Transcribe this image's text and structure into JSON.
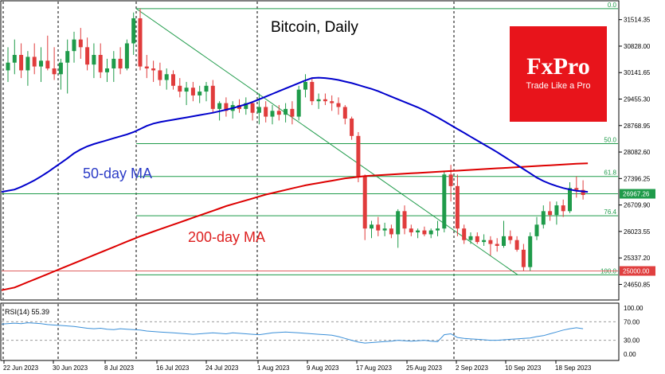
{
  "chart_data": {
    "type": "candlestick",
    "title": "Bitcoin, Daily",
    "symbol": "Bitcoin",
    "timeframe": "Daily",
    "price_axis_labels": [
      31514.35,
      30828.0,
      30141.65,
      29455.3,
      28768.95,
      28082.6,
      27396.25,
      26709.9,
      26023.55,
      25337.2,
      24650.85
    ],
    "ylim": [
      24350,
      31900
    ],
    "date_labels": [
      "22 Jun 2023",
      "30 Jun 2023",
      "8 Jul 2023",
      "16 Jul 2023",
      "24 Jul 2023",
      "1 Aug 2023",
      "9 Aug 2023",
      "17 Aug 2023",
      "25 Aug 2023",
      "2 Sep 2023",
      "10 Sep 2023",
      "18 Sep 2023"
    ],
    "current_price_label": "26967.26",
    "horizontal_level_label": "25000.00",
    "horizontal_level": 25000,
    "fib_levels": [
      {
        "label": "0.0",
        "price": 31800
      },
      {
        "label": "50.0",
        "price": 28300
      },
      {
        "label": "61.8",
        "price": 27450
      },
      {
        "label": "76.4",
        "price": 26430
      },
      {
        "label": "100.0",
        "price": 24900
      }
    ],
    "ma50_label": "50-day MA",
    "ma200_label": "200-day MA",
    "ohlc": [
      [
        30200,
        30800,
        29900,
        30400
      ],
      [
        30400,
        31000,
        30100,
        30600
      ],
      [
        30600,
        30900,
        30000,
        30200
      ],
      [
        30200,
        30700,
        29800,
        30550
      ],
      [
        30550,
        30900,
        30100,
        30300
      ],
      [
        30300,
        30800,
        29900,
        30450
      ],
      [
        30450,
        31100,
        30200,
        30250
      ],
      [
        30250,
        30800,
        29950,
        30100
      ],
      [
        30100,
        30500,
        29700,
        30400
      ],
      [
        30400,
        31000,
        29600,
        30700
      ],
      [
        30700,
        31200,
        30400,
        31000
      ],
      [
        31000,
        31300,
        30500,
        30800
      ],
      [
        30800,
        31050,
        30200,
        30350
      ],
      [
        30350,
        30900,
        30000,
        30600
      ],
      [
        30600,
        30900,
        30000,
        30150
      ],
      [
        30150,
        30500,
        29900,
        30250
      ],
      [
        30250,
        30700,
        29900,
        30500
      ],
      [
        30500,
        30800,
        30100,
        30250
      ],
      [
        30250,
        31000,
        30200,
        30900
      ],
      [
        30900,
        31700,
        30600,
        31550
      ],
      [
        31550,
        31800,
        30200,
        30300
      ],
      [
        30300,
        30600,
        30000,
        30250
      ],
      [
        30250,
        30450,
        29900,
        30200
      ],
      [
        30200,
        30400,
        29800,
        29950
      ],
      [
        29950,
        30250,
        29700,
        30100
      ],
      [
        30100,
        30200,
        29700,
        29800
      ],
      [
        29800,
        30000,
        29500,
        29650
      ],
      [
        29650,
        29900,
        29300,
        29750
      ],
      [
        29750,
        29900,
        29400,
        29550
      ],
      [
        29550,
        29800,
        29350,
        29650
      ],
      [
        29650,
        29900,
        29400,
        29800
      ],
      [
        29800,
        29950,
        29100,
        29200
      ],
      [
        29200,
        29400,
        28900,
        29350
      ],
      [
        29350,
        29500,
        29000,
        29150
      ],
      [
        29150,
        29400,
        28950,
        29300
      ],
      [
        29300,
        29450,
        29100,
        29200
      ],
      [
        29200,
        29500,
        29050,
        29350
      ],
      [
        29350,
        29400,
        28900,
        29100
      ],
      [
        29100,
        29600,
        28800,
        29250
      ],
      [
        29250,
        29400,
        28850,
        29000
      ],
      [
        29000,
        29300,
        28800,
        29150
      ],
      [
        29150,
        29300,
        28900,
        29050
      ],
      [
        29050,
        29350,
        28850,
        29200
      ],
      [
        29200,
        29400,
        28800,
        29000
      ],
      [
        29000,
        29800,
        28900,
        29700
      ],
      [
        29700,
        30100,
        29500,
        29900
      ],
      [
        29900,
        30000,
        29300,
        29400
      ],
      [
        29400,
        29600,
        29200,
        29450
      ],
      [
        29450,
        29600,
        29300,
        29400
      ],
      [
        29400,
        29550,
        29150,
        29350
      ],
      [
        29350,
        29500,
        29050,
        29250
      ],
      [
        29250,
        29300,
        28800,
        28950
      ],
      [
        28950,
        29000,
        28400,
        28500
      ],
      [
        28500,
        28600,
        27300,
        27450
      ],
      [
        27450,
        27500,
        25800,
        26100
      ],
      [
        26100,
        26300,
        25850,
        26200
      ],
      [
        26200,
        26400,
        25900,
        26050
      ],
      [
        26050,
        26250,
        25900,
        26100
      ],
      [
        26100,
        26200,
        25850,
        25950
      ],
      [
        25950,
        26600,
        25600,
        26550
      ],
      [
        26550,
        26700,
        25950,
        26100
      ],
      [
        26100,
        26200,
        25900,
        26000
      ],
      [
        26000,
        26100,
        25850,
        26050
      ],
      [
        26050,
        26150,
        25900,
        25950
      ],
      [
        25950,
        26100,
        25850,
        26050
      ],
      [
        26050,
        26300,
        25900,
        26100
      ],
      [
        26100,
        27600,
        26000,
        27500
      ],
      [
        27500,
        27750,
        26800,
        27200
      ],
      [
        27200,
        27500,
        25900,
        26100
      ],
      [
        26100,
        26200,
        25700,
        25800
      ],
      [
        25800,
        26000,
        25700,
        25900
      ],
      [
        25900,
        26000,
        25700,
        25750
      ],
      [
        25750,
        25950,
        25650,
        25800
      ],
      [
        25800,
        25900,
        25400,
        25700
      ],
      [
        25700,
        25850,
        25500,
        25650
      ],
      [
        25650,
        26300,
        25600,
        25900
      ],
      [
        25900,
        26050,
        25700,
        25800
      ],
      [
        25800,
        25900,
        25500,
        25550
      ],
      [
        25550,
        25700,
        25000,
        25100
      ],
      [
        25100,
        26000,
        25000,
        25900
      ],
      [
        25900,
        26400,
        25800,
        26200
      ],
      [
        26200,
        26700,
        26100,
        26550
      ],
      [
        26550,
        26800,
        26300,
        26450
      ],
      [
        26450,
        26800,
        26200,
        26700
      ],
      [
        26700,
        26850,
        26400,
        26550
      ],
      [
        26550,
        27300,
        26500,
        27150
      ],
      [
        27150,
        27450,
        26900,
        27100
      ],
      [
        27100,
        27350,
        26850,
        26970
      ]
    ],
    "ma50": [
      27050,
      27110,
      27180,
      27260,
      27350,
      27450,
      27560,
      27680,
      27800,
      27920,
      28050,
      28150,
      28230,
      28290,
      28340,
      28390,
      28440,
      28490,
      28540,
      28600,
      28680,
      28760,
      28820,
      28860,
      28890,
      28920,
      28950,
      28980,
      29010,
      29040,
      29070,
      29100,
      29140,
      29180,
      29220,
      29270,
      29320,
      29380,
      29450,
      29520,
      29590,
      29660,
      29730,
      29800,
      29870,
      29940,
      30000,
      30010,
      30000,
      29980,
      29950,
      29910,
      29870,
      29820,
      29770,
      29720,
      29660,
      29590,
      29520,
      29450,
      29380,
      29310,
      29240,
      29160,
      29070,
      28980,
      28880,
      28780,
      28680,
      28580,
      28480,
      28380,
      28280,
      28180,
      28080,
      27970,
      27860,
      27750,
      27640,
      27530,
      27420,
      27330,
      27260,
      27200,
      27150,
      27110,
      27080,
      27050
    ],
    "ma200": [
      24500,
      24570,
      24640,
      24710,
      24780,
      24850,
      24920,
      24990,
      25060,
      25130,
      25200,
      25270,
      25340,
      25410,
      25480,
      25550,
      25620,
      25690,
      25760,
      25830,
      25900,
      25960,
      26020,
      26080,
      26140,
      26200,
      26260,
      26320,
      26380,
      26440,
      26500,
      26560,
      26620,
      26680,
      26730,
      26780,
      26830,
      26880,
      26930,
      26980,
      27020,
      27060,
      27100,
      27140,
      27180,
      27220,
      27250,
      27280,
      27310,
      27340,
      27370,
      27400,
      27420,
      27440,
      27460,
      27470,
      27480,
      27490,
      27500,
      27510,
      27520,
      27530,
      27540,
      27550,
      27560,
      27570,
      27580,
      27590,
      27600,
      27610,
      27620,
      27630,
      27640,
      27650,
      27660,
      27670,
      27680,
      27690,
      27700,
      27710,
      27720,
      27730,
      27740,
      27750,
      27760,
      27770,
      27780,
      27790
    ],
    "rsi_label": "RSI(14) 55.39",
    "rsi_axis_labels": [
      "100.00",
      "70.00",
      "30.00",
      "0.00"
    ],
    "rsi_levels": [
      100,
      70,
      30,
      0
    ],
    "rsi": [
      65,
      67,
      66,
      68,
      67,
      66,
      64,
      63,
      62,
      61,
      60,
      58,
      56,
      55,
      56,
      54,
      53,
      55,
      54,
      53,
      52,
      50,
      49,
      48,
      47,
      46,
      45,
      44,
      43,
      44,
      45,
      46,
      45,
      44,
      46,
      45,
      44,
      43,
      42,
      44,
      46,
      47,
      48,
      47,
      46,
      45,
      44,
      43,
      42,
      41,
      38,
      34,
      30,
      26,
      24,
      25,
      26,
      27,
      28,
      30,
      29,
      28,
      29,
      30,
      28,
      27,
      42,
      44,
      36,
      34,
      33,
      32,
      31,
      30,
      30,
      31,
      32,
      33,
      34,
      35,
      38,
      40,
      44,
      48,
      52,
      55,
      57,
      55
    ]
  }
}
